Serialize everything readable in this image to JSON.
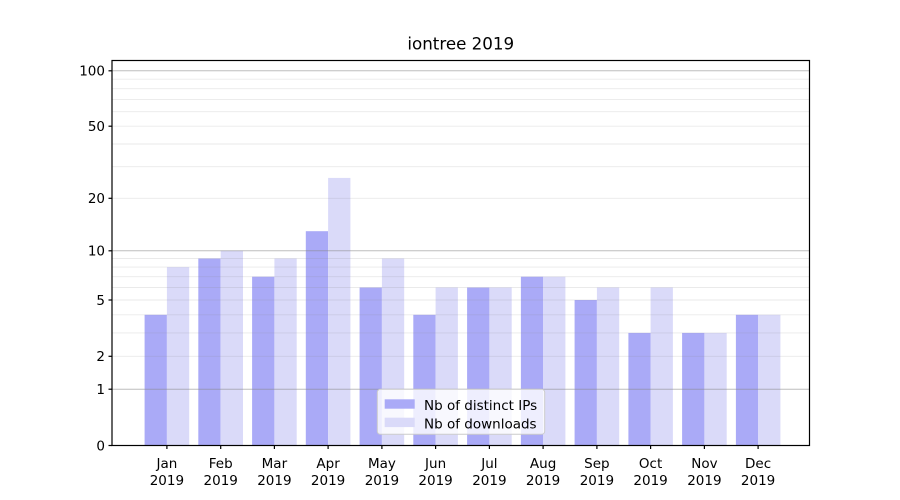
{
  "chart_data": {
    "type": "bar",
    "title": "iontree 2019",
    "categories": [
      {
        "month": "Jan",
        "year": "2019"
      },
      {
        "month": "Feb",
        "year": "2019"
      },
      {
        "month": "Mar",
        "year": "2019"
      },
      {
        "month": "Apr",
        "year": "2019"
      },
      {
        "month": "May",
        "year": "2019"
      },
      {
        "month": "Jun",
        "year": "2019"
      },
      {
        "month": "Jul",
        "year": "2019"
      },
      {
        "month": "Aug",
        "year": "2019"
      },
      {
        "month": "Sep",
        "year": "2019"
      },
      {
        "month": "Oct",
        "year": "2019"
      },
      {
        "month": "Nov",
        "year": "2019"
      },
      {
        "month": "Dec",
        "year": "2019"
      }
    ],
    "series": [
      {
        "name": "Nb of distinct IPs",
        "color": "#aaaaf7",
        "values": [
          4,
          9,
          7,
          13,
          6,
          4,
          6,
          7,
          5,
          3,
          3,
          4
        ]
      },
      {
        "name": "Nb of downloads",
        "color": "#dadaf9",
        "values": [
          8,
          10,
          9,
          26,
          9,
          6,
          6,
          7,
          6,
          6,
          3,
          4
        ]
      }
    ],
    "y_axis": {
      "scale": "log1p",
      "ticks": [
        0,
        1,
        2,
        5,
        10,
        20,
        50,
        100
      ],
      "major_gridlines": [
        1,
        10,
        100
      ],
      "minor_gridlines": [
        2,
        3,
        4,
        5,
        6,
        7,
        8,
        9,
        20,
        30,
        40,
        50,
        60,
        70,
        80,
        90
      ],
      "ylim": [
        0,
        113.6
      ]
    },
    "legend_position": "lower center",
    "grid_color": "#888888",
    "spine_color": "#000000",
    "background_color": "#ffffff"
  }
}
